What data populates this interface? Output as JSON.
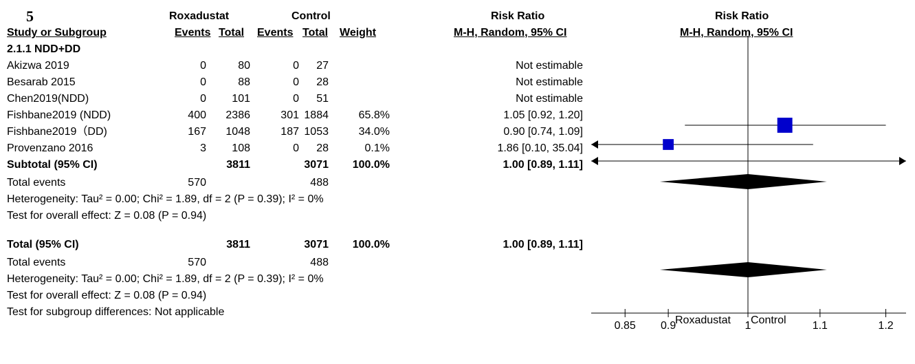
{
  "figure_label": "5",
  "headers": {
    "group_roxa": "Roxadustat",
    "group_ctrl": "Control",
    "rr_text": "Risk Ratio",
    "rr_plot": "Risk Ratio",
    "study": "Study or Subgroup",
    "events1": "Events",
    "total1": "Total",
    "events2": "Events",
    "total2": "Total",
    "weight": "Weight",
    "method_text": "M-H, Random, 95% CI",
    "method_plot": "M-H, Random, 95% CI"
  },
  "subgroup_title": "2.1.1 NDD+DD",
  "studies": [
    {
      "name": "Akizwa 2019",
      "e1": "0",
      "t1": "80",
      "e2": "0",
      "t2": "27",
      "weight": "",
      "ci": "Not estimable"
    },
    {
      "name": "Besarab 2015",
      "e1": "0",
      "t1": "88",
      "e2": "0",
      "t2": "28",
      "weight": "",
      "ci": "Not estimable"
    },
    {
      "name": "Chen2019(NDD)",
      "e1": "0",
      "t1": "101",
      "e2": "0",
      "t2": "51",
      "weight": "",
      "ci": "Not estimable"
    },
    {
      "name": "Fishbane2019 (NDD)",
      "e1": "400",
      "t1": "2386",
      "e2": "301",
      "t2": "1884",
      "weight": "65.8%",
      "ci": "1.05 [0.92, 1.20]"
    },
    {
      "name": "Fishbane2019（DD)",
      "e1": "167",
      "t1": "1048",
      "e2": "187",
      "t2": "1053",
      "weight": "34.0%",
      "ci": "0.90 [0.74, 1.09]"
    },
    {
      "name": "Provenzano 2016",
      "e1": "3",
      "t1": "108",
      "e2": "0",
      "t2": "28",
      "weight": "0.1%",
      "ci": "1.86 [0.10, 35.04]"
    }
  ],
  "subtotal": {
    "label": "Subtotal (95% CI)",
    "t1": "3811",
    "t2": "3071",
    "weight": "100.0%",
    "ci": "1.00 [0.89, 1.11]"
  },
  "subtotal_events": {
    "label": "Total events",
    "e1": "570",
    "e2": "488"
  },
  "subtotal_het": "Heterogeneity: Tau² = 0.00; Chi² = 1.89, df = 2 (P = 0.39); I² = 0%",
  "subtotal_test": "Test for overall effect: Z = 0.08 (P = 0.94)",
  "total": {
    "label": "Total (95% CI)",
    "t1": "3811",
    "t2": "3071",
    "weight": "100.0%",
    "ci": "1.00 [0.89, 1.11]"
  },
  "total_events": {
    "label": "Total events",
    "e1": "570",
    "e2": "488"
  },
  "total_het": "Heterogeneity: Tau² = 0.00; Chi² = 1.89, df = 2 (P = 0.39); I² = 0%",
  "total_test": "Test for overall effect: Z = 0.08 (P = 0.94)",
  "subgroup_diff": "Test for subgroup differences: Not applicable",
  "axis_footer": {
    "left": "Roxadustat",
    "right": "Control"
  },
  "chart_data": {
    "type": "forest",
    "scale": "log",
    "null_value": 1,
    "xticks": [
      0.85,
      0.9,
      1,
      1.1,
      1.2
    ],
    "xtick_labels": [
      "0.85",
      "0.9",
      "1",
      "1.1",
      "1.2"
    ],
    "marker_color": "#0000cc",
    "study_estimates": [
      {
        "study": "Fishbane2019 (NDD)",
        "rr": 1.05,
        "lower": 0.92,
        "upper": 1.2,
        "weight": 65.8
      },
      {
        "study": "Fishbane2019（DD)",
        "rr": 0.9,
        "lower": 0.74,
        "upper": 1.09,
        "weight": 34.0
      },
      {
        "study": "Provenzano 2016",
        "rr": 1.86,
        "lower": 0.1,
        "upper": 35.04,
        "weight": 0.1
      }
    ],
    "pooled": [
      {
        "label": "Subtotal (95% CI)",
        "rr": 1.0,
        "lower": 0.89,
        "upper": 1.11
      },
      {
        "label": "Total (95% CI)",
        "rr": 1.0,
        "lower": 0.89,
        "upper": 1.11
      }
    ]
  }
}
